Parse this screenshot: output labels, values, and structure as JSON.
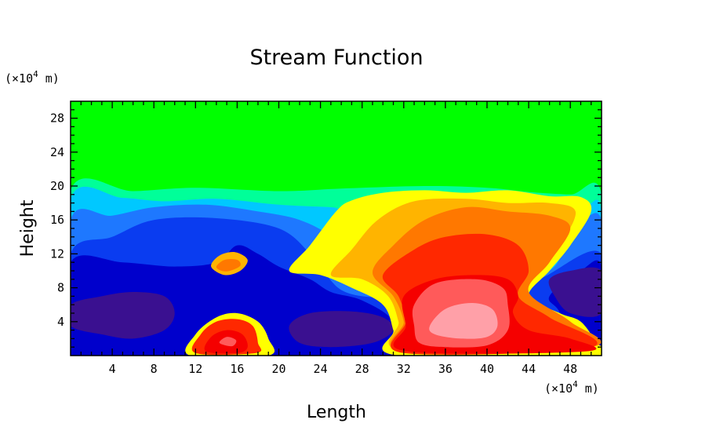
{
  "chart_data": {
    "type": "heatmap",
    "title": "Stream Function",
    "xlabel": "Length",
    "ylabel": "Height",
    "x_unit_prefix": "(×10",
    "x_unit_exp": "4",
    "x_unit_suffix": " m)",
    "y_unit_prefix": "(×10",
    "y_unit_exp": "4",
    "y_unit_suffix": " m)",
    "xlim": [
      0,
      51
    ],
    "ylim": [
      0,
      30
    ],
    "xticks": [
      4,
      8,
      12,
      16,
      20,
      24,
      28,
      32,
      36,
      40,
      44,
      48
    ],
    "yticks": [
      4,
      8,
      12,
      16,
      20,
      24,
      28
    ],
    "colormap": [
      "#3a1090",
      "#0000cc",
      "#0a3cf0",
      "#1e78ff",
      "#00c8ff",
      "#00ff99",
      "#00ff00",
      "#ffff00",
      "#ffb400",
      "#ff7800",
      "#ff2800",
      "#f50000",
      "#ff5a5a",
      "#ffa0a8"
    ],
    "regions": [
      {
        "level": 6,
        "points": [
          [
            0,
            30
          ],
          [
            51,
            30
          ],
          [
            51,
            0
          ],
          [
            0,
            0
          ]
        ]
      },
      {
        "level": 5,
        "points": [
          [
            0,
            19.5
          ],
          [
            6,
            19.4
          ],
          [
            12,
            19.8
          ],
          [
            20,
            19.4
          ],
          [
            26,
            19.7
          ],
          [
            34,
            20
          ],
          [
            40,
            19.8
          ],
          [
            44,
            19.3
          ],
          [
            48,
            19
          ],
          [
            51,
            19
          ],
          [
            51,
            0
          ],
          [
            0,
            0
          ]
        ]
      },
      {
        "level": 4,
        "points": [
          [
            0,
            18.5
          ],
          [
            5,
            18.6
          ],
          [
            9,
            18.2
          ],
          [
            14,
            18.5
          ],
          [
            20,
            17.8
          ],
          [
            25,
            17.5
          ],
          [
            27,
            17.3
          ],
          [
            40,
            17
          ],
          [
            44,
            18
          ],
          [
            49,
            17.5
          ],
          [
            51,
            17
          ],
          [
            51,
            0
          ],
          [
            0,
            0
          ]
        ]
      },
      {
        "level": 3,
        "points": [
          [
            0,
            16
          ],
          [
            4,
            16.5
          ],
          [
            8,
            17.5
          ],
          [
            13,
            17.8
          ],
          [
            18,
            17
          ],
          [
            22,
            16
          ],
          [
            25,
            14
          ],
          [
            26.5,
            11
          ],
          [
            26.8,
            9
          ],
          [
            30,
            8
          ],
          [
            40,
            8
          ],
          [
            46,
            10
          ],
          [
            48,
            14
          ],
          [
            51,
            16
          ],
          [
            51,
            0
          ],
          [
            0,
            0
          ]
        ]
      },
      {
        "level": 2,
        "points": [
          [
            0,
            12
          ],
          [
            4,
            14
          ],
          [
            8,
            16
          ],
          [
            14,
            16.2
          ],
          [
            20,
            15
          ],
          [
            23,
            12
          ],
          [
            24.5,
            9.5
          ],
          [
            28,
            7
          ],
          [
            40,
            7
          ],
          [
            45,
            9
          ],
          [
            51,
            12
          ],
          [
            51,
            0
          ],
          [
            0,
            0
          ]
        ]
      },
      {
        "level": 1,
        "points": [
          [
            0,
            11
          ],
          [
            5,
            11
          ],
          [
            10,
            10.5
          ],
          [
            14,
            11
          ],
          [
            16,
            13
          ],
          [
            18,
            12
          ],
          [
            20,
            10.5
          ],
          [
            23,
            9
          ],
          [
            25,
            7.5
          ],
          [
            28,
            6.5
          ],
          [
            31,
            4
          ],
          [
            31,
            0
          ],
          [
            0,
            0
          ]
        ]
      },
      {
        "level": 1,
        "points": [
          [
            46,
            7
          ],
          [
            49,
            10
          ],
          [
            51,
            10.5
          ],
          [
            51,
            0
          ],
          [
            48,
            0
          ],
          [
            47,
            5
          ]
        ]
      },
      {
        "level": 0,
        "points": [
          [
            0,
            6
          ],
          [
            3,
            7
          ],
          [
            6,
            7.5
          ],
          [
            9,
            7
          ],
          [
            10,
            5
          ],
          [
            9,
            3
          ],
          [
            6,
            2
          ],
          [
            3,
            2.5
          ],
          [
            0,
            3.5
          ]
        ]
      },
      {
        "level": 0,
        "points": [
          [
            21,
            3.5
          ],
          [
            23,
            5
          ],
          [
            27,
            5.2
          ],
          [
            30,
            4.5
          ],
          [
            31,
            3
          ],
          [
            29,
            1.5
          ],
          [
            25,
            1
          ],
          [
            22,
            1.5
          ]
        ]
      },
      {
        "level": 0,
        "points": [
          [
            46,
            9
          ],
          [
            48,
            10
          ],
          [
            51,
            10
          ],
          [
            51,
            5
          ],
          [
            48,
            5
          ],
          [
            46.5,
            7
          ]
        ]
      },
      {
        "level": 7,
        "points": [
          [
            21,
            10
          ],
          [
            23,
            13
          ],
          [
            25.5,
            17
          ],
          [
            27,
            18.3
          ],
          [
            30,
            19.2
          ],
          [
            34,
            19.5
          ],
          [
            38,
            19.2
          ],
          [
            42,
            19.5
          ],
          [
            46,
            18.8
          ],
          [
            49,
            18.7
          ],
          [
            50,
            17
          ],
          [
            48,
            13
          ],
          [
            46,
            10
          ],
          [
            44,
            7
          ],
          [
            47,
            5
          ],
          [
            49,
            4
          ],
          [
            50.5,
            1.5
          ],
          [
            51,
            0
          ],
          [
            31.5,
            0
          ],
          [
            31,
            3
          ],
          [
            30,
            6
          ],
          [
            27,
            8
          ],
          [
            24,
            9.5
          ]
        ]
      },
      {
        "level": 8,
        "points": [
          [
            25,
            9.5
          ],
          [
            27,
            12.5
          ],
          [
            29.5,
            16
          ],
          [
            33,
            18.2
          ],
          [
            38,
            18.5
          ],
          [
            42,
            18
          ],
          [
            46,
            18
          ],
          [
            48.5,
            17
          ],
          [
            47,
            13
          ],
          [
            45,
            10
          ],
          [
            44,
            7
          ],
          [
            48,
            4
          ],
          [
            50,
            1
          ],
          [
            32,
            0.5
          ],
          [
            31.5,
            4
          ],
          [
            30.5,
            7
          ],
          [
            28,
            9
          ]
        ]
      },
      {
        "level": 9,
        "points": [
          [
            29,
            9.8
          ],
          [
            31,
            13
          ],
          [
            34,
            16
          ],
          [
            38,
            17.5
          ],
          [
            42,
            17
          ],
          [
            46,
            16.5
          ],
          [
            48,
            15
          ],
          [
            46,
            11
          ],
          [
            44,
            7.5
          ],
          [
            48,
            4
          ],
          [
            50,
            1
          ],
          [
            32,
            0.5
          ],
          [
            32,
            4
          ],
          [
            31,
            7
          ]
        ]
      },
      {
        "level": 10,
        "points": [
          [
            30,
            9.5
          ],
          [
            33,
            12.5
          ],
          [
            36,
            14
          ],
          [
            40,
            14.3
          ],
          [
            43,
            13
          ],
          [
            44,
            10
          ],
          [
            43,
            7
          ],
          [
            46,
            4.5
          ],
          [
            50,
            1
          ],
          [
            32,
            0.3
          ],
          [
            32.2,
            4
          ],
          [
            31.5,
            7
          ]
        ]
      },
      {
        "level": 11,
        "points": [
          [
            32,
            7
          ],
          [
            35,
            9
          ],
          [
            39,
            9.5
          ],
          [
            42,
            9
          ],
          [
            43,
            7
          ],
          [
            42.5,
            5
          ],
          [
            44,
            3
          ],
          [
            48,
            2
          ],
          [
            49.5,
            0.5
          ],
          [
            32.3,
            0.5
          ],
          [
            32.2,
            3.5
          ]
        ]
      },
      {
        "level": 12,
        "points": [
          [
            33,
            6
          ],
          [
            35,
            8.5
          ],
          [
            39,
            9
          ],
          [
            41.5,
            8
          ],
          [
            42,
            6
          ],
          [
            42,
            3
          ],
          [
            40,
            1.2
          ],
          [
            36,
            1
          ],
          [
            33.5,
            1.5
          ],
          [
            33,
            3.5
          ]
        ]
      },
      {
        "level": 13,
        "points": [
          [
            34.5,
            3.5
          ],
          [
            36,
            5.5
          ],
          [
            38.5,
            6.2
          ],
          [
            40.5,
            5.5
          ],
          [
            41,
            3.5
          ],
          [
            40,
            2.2
          ],
          [
            37.5,
            2
          ],
          [
            35,
            2.5
          ]
        ]
      },
      {
        "level": 7,
        "points": [
          [
            11.5,
            0
          ],
          [
            12,
            2.5
          ],
          [
            14,
            4.5
          ],
          [
            16,
            5
          ],
          [
            18,
            4
          ],
          [
            19,
            2
          ],
          [
            19,
            0
          ]
        ]
      },
      {
        "level": 10,
        "points": [
          [
            12,
            0.3
          ],
          [
            12.5,
            2.5
          ],
          [
            14,
            4
          ],
          [
            16,
            4.3
          ],
          [
            17.5,
            3.5
          ],
          [
            18,
            1.5
          ],
          [
            17.8,
            0.3
          ]
        ]
      },
      {
        "level": 11,
        "points": [
          [
            13,
            0.5
          ],
          [
            13.5,
            2.2
          ],
          [
            15,
            3
          ],
          [
            16.5,
            2.5
          ],
          [
            17,
            1
          ],
          [
            16,
            0.3
          ]
        ]
      },
      {
        "level": 12,
        "points": [
          [
            14.3,
            1.5
          ],
          [
            15,
            2.2
          ],
          [
            15.9,
            1.8
          ],
          [
            15.5,
            1.1
          ]
        ]
      },
      {
        "level": 8,
        "points": [
          [
            13.5,
            10.5
          ],
          [
            14.3,
            11.8
          ],
          [
            15.8,
            12.2
          ],
          [
            17,
            11.3
          ],
          [
            16.3,
            10
          ],
          [
            14.8,
            9.5
          ]
        ]
      },
      {
        "level": 9,
        "points": [
          [
            14,
            10.5
          ],
          [
            14.8,
            11.3
          ],
          [
            16,
            11.3
          ],
          [
            16.3,
            10.6
          ],
          [
            15.3,
            10
          ],
          [
            14.5,
            10
          ]
        ]
      }
    ]
  }
}
